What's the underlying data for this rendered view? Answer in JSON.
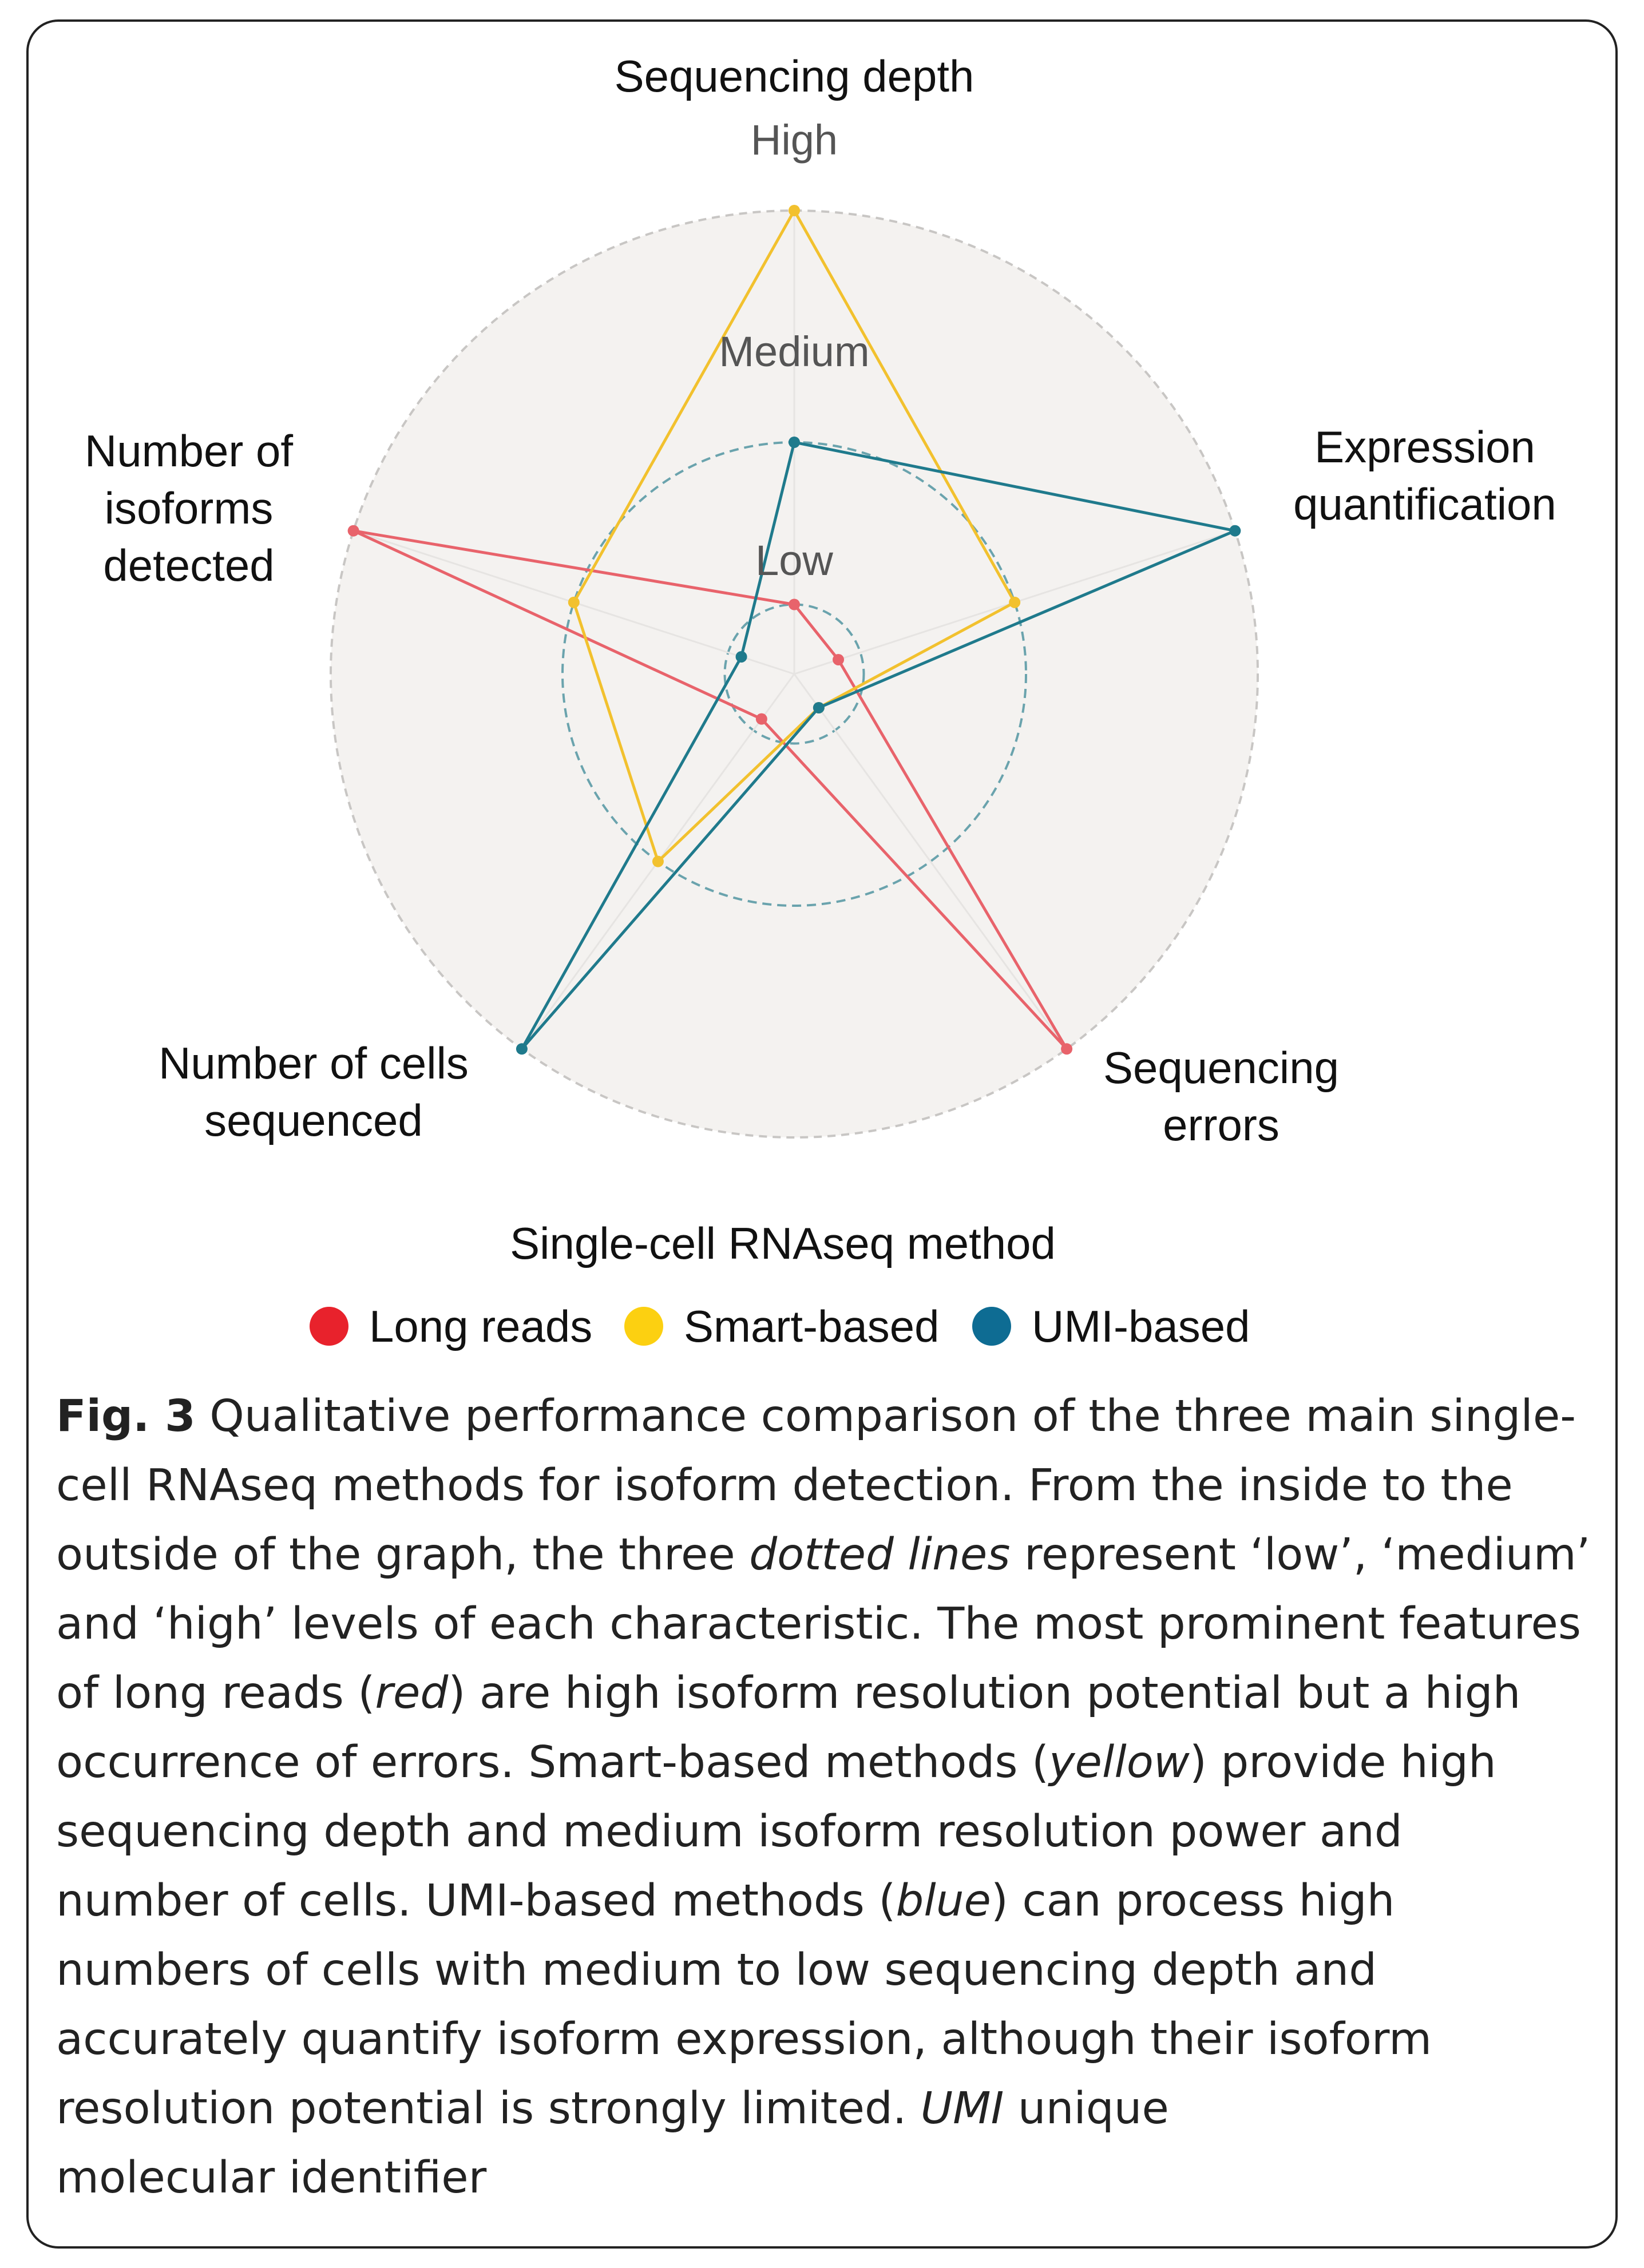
{
  "chart_data": {
    "type": "radar",
    "axes": [
      "Sequencing depth",
      "Expression quantification",
      "Sequencing errors",
      "Number of cells sequenced",
      "Number of isoforms detected"
    ],
    "axis_label_lines": [
      [
        "Sequencing depth"
      ],
      [
        "Expression",
        "quantification"
      ],
      [
        "Sequencing",
        "errors"
      ],
      [
        "Number of cells",
        "sequenced"
      ],
      [
        "Number of",
        "isoforms",
        "detected"
      ]
    ],
    "levels": [
      "Low",
      "Medium",
      "High"
    ],
    "level_values": [
      0.15,
      0.5,
      1.0
    ],
    "range": [
      0,
      1
    ],
    "series": [
      {
        "name": "Long reads",
        "color": "#e8636b",
        "values": [
          0.15,
          0.1,
          1.0,
          0.12,
          1.0
        ]
      },
      {
        "name": "Smart-based",
        "color": "#f2c12e",
        "values": [
          1.0,
          0.5,
          0.09,
          0.5,
          0.5
        ]
      },
      {
        "name": "UMI-based",
        "color": "#1f7a8c",
        "values": [
          0.5,
          1.0,
          0.09,
          1.0,
          0.12
        ]
      }
    ],
    "legend": {
      "title": "Single-cell RNAseq method",
      "position": "bottom"
    },
    "grid": true
  },
  "legend_colors": {
    "Long reads": "#e8222c",
    "Smart-based": "#fcd011",
    "UMI-based": "#0e6c93"
  },
  "caption": {
    "label": "Fig. 3",
    "lines": [
      [
        {
          "t": " Qualitative performance comparison of the three main single-"
        }
      ],
      [
        {
          "t": "cell RNAseq methods for isoform detection. From the inside to the"
        }
      ],
      [
        {
          "t": "outside of the graph, the three "
        },
        {
          "t": "dotted lines",
          "i": true
        },
        {
          "t": " represent ‘low’, ‘medium’"
        }
      ],
      [
        {
          "t": "and ‘high’ levels of each characteristic. The most prominent features"
        }
      ],
      [
        {
          "t": "of long reads ("
        },
        {
          "t": "red",
          "i": true
        },
        {
          "t": ") are high isoform resolution potential but a high"
        }
      ],
      [
        {
          "t": "occurrence of errors. Smart-based methods ("
        },
        {
          "t": "yellow",
          "i": true
        },
        {
          "t": ") provide high"
        }
      ],
      [
        {
          "t": "sequencing depth and medium isoform resolution power and"
        }
      ],
      [
        {
          "t": "number of cells. UMI-based methods ("
        },
        {
          "t": "blue",
          "i": true
        },
        {
          "t": ") can process high"
        }
      ],
      [
        {
          "t": "numbers of cells with medium to low sequencing depth and"
        }
      ],
      [
        {
          "t": "accurately quantify isoform expression, although their isoform"
        }
      ],
      [
        {
          "t": "resolution potential is strongly limited. "
        },
        {
          "t": "UMI",
          "i": true
        },
        {
          "t": " unique"
        }
      ],
      [
        {
          "t": "molecular identifier"
        }
      ]
    ]
  }
}
